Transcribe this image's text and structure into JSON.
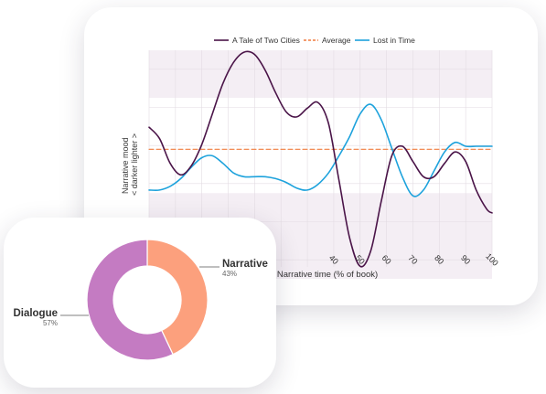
{
  "chart_data": [
    {
      "type": "line",
      "xlabel": "Narrative time (% of book)",
      "ylabel_lines": [
        "Narrative mood",
        "< darker    lighter >"
      ],
      "x_ticks": [
        40,
        50,
        60,
        70,
        80,
        90,
        100
      ],
      "xlim": [
        -30,
        100
      ],
      "ylim": [
        -3,
        3
      ],
      "legend_position": "top",
      "series": [
        {
          "name": "A Tale of Two Cities",
          "color": "#4a1448",
          "style": "solid",
          "x": [
            -30,
            -26,
            -22,
            -18,
            -14,
            -10,
            -6,
            -2,
            2,
            6,
            10,
            14,
            18,
            22,
            26,
            30,
            34,
            38,
            42,
            46,
            50,
            54,
            58,
            62,
            66,
            70,
            74,
            78,
            82,
            86,
            90,
            94,
            98,
            100
          ],
          "y": [
            0.98,
            0.68,
            0.03,
            -0.27,
            -0.03,
            0.53,
            1.33,
            2.13,
            2.68,
            2.95,
            2.89,
            2.48,
            1.88,
            1.38,
            1.25,
            1.48,
            1.63,
            1.08,
            -0.42,
            -1.92,
            -2.67,
            -2.27,
            -0.97,
            0.23,
            0.48,
            0.08,
            -0.32,
            -0.32,
            0.03,
            0.33,
            0.08,
            -0.67,
            -1.17,
            -1.27
          ]
        },
        {
          "name": "Average",
          "color": "#f07c3e",
          "style": "dashed",
          "x": [
            -30,
            100
          ],
          "y": [
            0.4,
            0.4
          ]
        },
        {
          "name": "Lost in Time",
          "color": "#1da2dc",
          "style": "solid",
          "x": [
            -30,
            -26,
            -22,
            -18,
            -14,
            -10,
            -6,
            -2,
            2,
            6,
            10,
            14,
            18,
            22,
            26,
            30,
            34,
            38,
            42,
            46,
            50,
            54,
            58,
            62,
            66,
            70,
            74,
            78,
            82,
            86,
            90,
            94,
            98,
            100
          ],
          "y": [
            -0.67,
            -0.67,
            -0.57,
            -0.37,
            -0.07,
            0.18,
            0.23,
            0.03,
            -0.22,
            -0.32,
            -0.32,
            -0.32,
            -0.37,
            -0.47,
            -0.62,
            -0.67,
            -0.52,
            -0.22,
            0.23,
            0.73,
            1.33,
            1.58,
            1.18,
            0.43,
            -0.32,
            -0.82,
            -0.67,
            -0.17,
            0.33,
            0.58,
            0.48,
            0.48,
            0.48,
            0.48
          ]
        }
      ]
    },
    {
      "type": "pie",
      "variant": "donut",
      "slices": [
        {
          "label": "Narrative",
          "percent_label": "43%",
          "value": 43,
          "color": "#fca07d"
        },
        {
          "label": "Dialogue",
          "percent_label": "57%",
          "value": 57,
          "color": "#c47bc2"
        }
      ]
    }
  ]
}
